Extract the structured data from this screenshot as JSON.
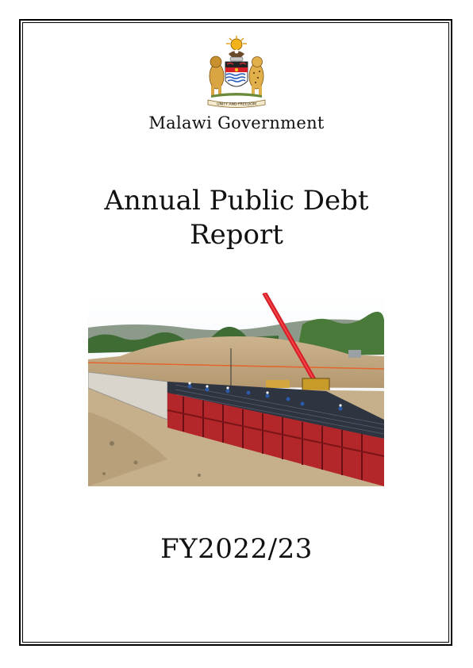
{
  "issuer": "Malawi Government",
  "title_line1": "Annual Public Debt",
  "title_line2": "Report",
  "fiscal_year": "FY2022/23",
  "coat_of_arms": {
    "icon": "coat-of-arms-icon",
    "motto": "UNITY AND FREEDOM"
  },
  "cover_photo": {
    "icon": "construction-site-photo"
  }
}
